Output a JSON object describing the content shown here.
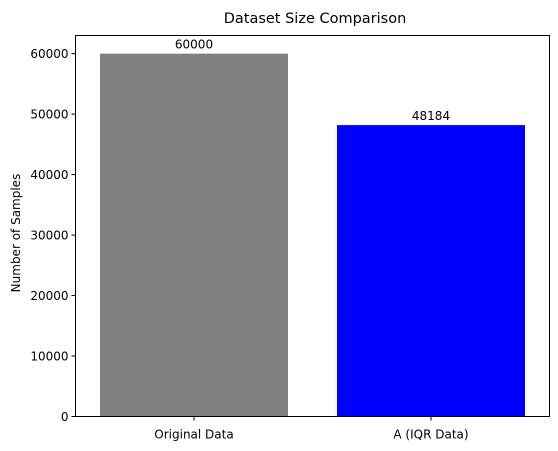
{
  "chart_data": {
    "type": "bar",
    "title": "Dataset Size Comparison",
    "xlabel": "",
    "ylabel": "Number of Samples",
    "categories": [
      "Original Data",
      "A (IQR Data)"
    ],
    "values": [
      60000,
      48184
    ],
    "value_labels": [
      "60000",
      "48184"
    ],
    "colors": [
      "#808080",
      "#0000ff"
    ],
    "ylim": [
      0,
      63000
    ],
    "yticks": [
      0,
      10000,
      20000,
      30000,
      40000,
      50000,
      60000
    ],
    "ytick_labels": [
      "0",
      "10000",
      "20000",
      "30000",
      "40000",
      "50000",
      "60000"
    ],
    "grid": false,
    "legend": "none"
  }
}
